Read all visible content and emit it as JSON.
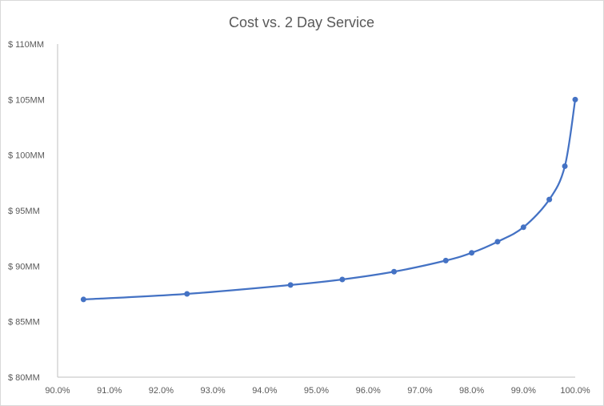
{
  "chart_data": {
    "type": "line",
    "title": "Cost vs. 2 Day Service",
    "xlabel": "",
    "ylabel": "",
    "xlim": [
      90.0,
      100.0
    ],
    "ylim": [
      80,
      110
    ],
    "x_ticks": [
      "90.0%",
      "91.0%",
      "92.0%",
      "93.0%",
      "94.0%",
      "95.0%",
      "96.0%",
      "97.0%",
      "98.0%",
      "99.0%",
      "100.0%"
    ],
    "y_ticks": [
      "$ 80MM",
      "$ 85MM",
      "$ 90MM",
      "$ 95MM",
      "$ 100MM",
      "$ 105MM",
      "$ 110MM"
    ],
    "grid": false,
    "legend": "none",
    "line_color": "#4472C4",
    "smooth": true,
    "series": [
      {
        "x": [
          90.5,
          92.5,
          94.5,
          95.5,
          96.5,
          97.5,
          98.0,
          98.5,
          99.0,
          99.5,
          99.8,
          100.0
        ],
        "y": [
          87.0,
          87.5,
          88.3,
          88.8,
          89.5,
          90.5,
          91.2,
          92.2,
          93.5,
          96.0,
          99.0,
          105.0
        ]
      }
    ]
  }
}
